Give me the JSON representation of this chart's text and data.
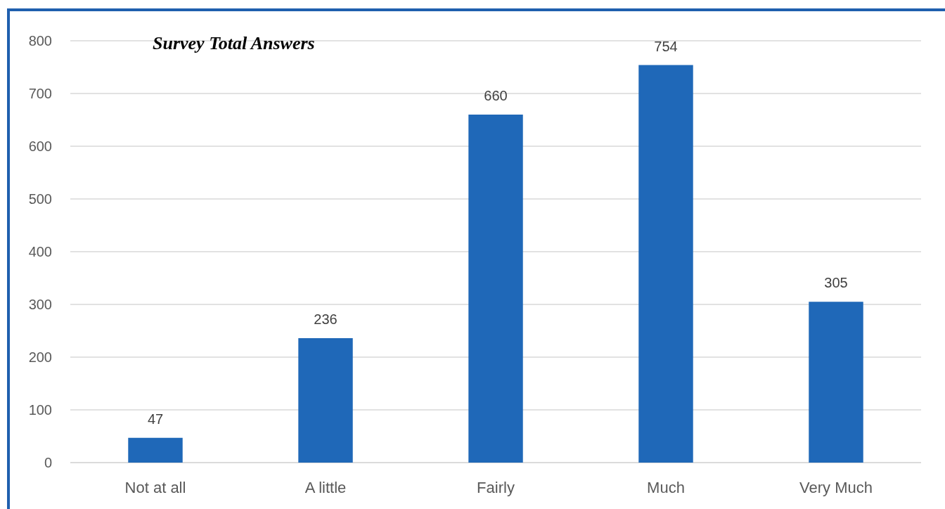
{
  "chart_data": {
    "type": "bar",
    "title": "Survey Total Answers",
    "categories": [
      "Not at all",
      "A little",
      "Fairly",
      "Much",
      "Very Much"
    ],
    "values": [
      47,
      236,
      660,
      754,
      305
    ],
    "color": "#1f68b8",
    "ylim": [
      0,
      800
    ],
    "yticks": [
      0,
      100,
      200,
      300,
      400,
      500,
      600,
      700,
      800
    ],
    "grid": "y",
    "data_labels": true
  }
}
